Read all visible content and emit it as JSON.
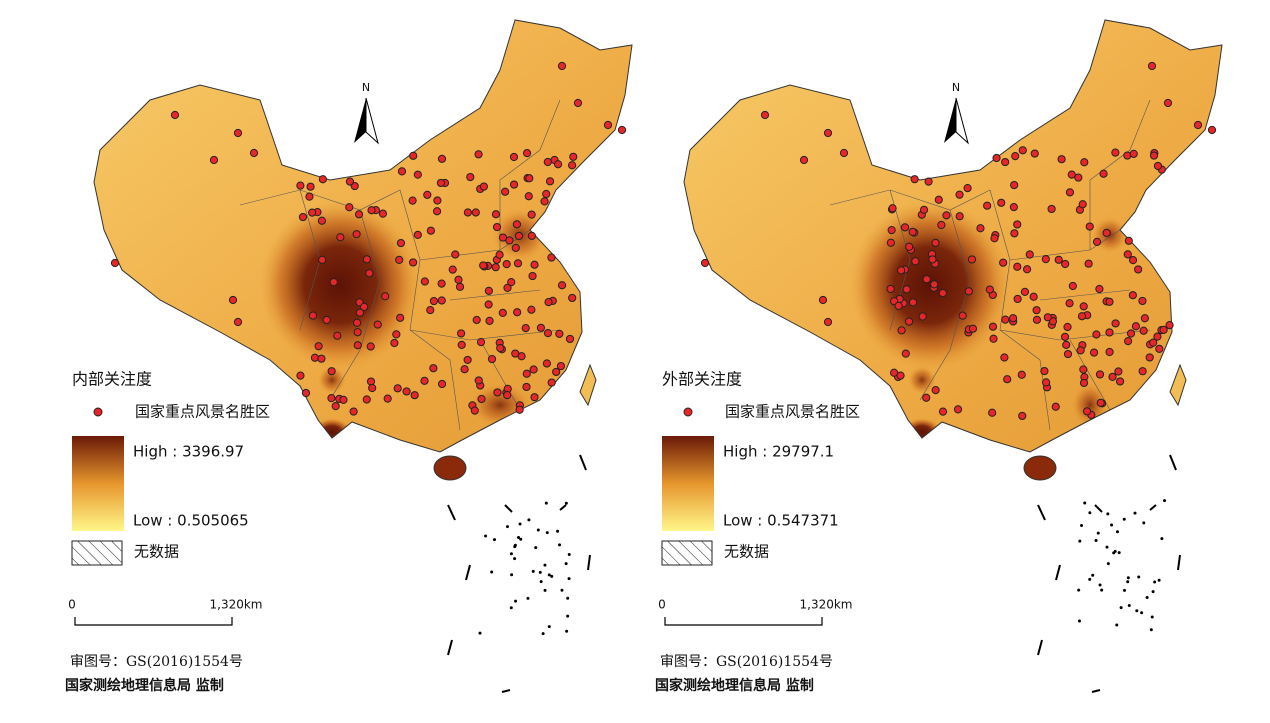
{
  "panels": [
    {
      "north": "N",
      "legend": {
        "title": "内部关注度",
        "point_label": "国家重点风景名胜区",
        "high": "High : 3396.97",
        "low": "Low : 0.505065",
        "no_data": "无数据"
      },
      "scale": {
        "start": "0",
        "end": "1,320km"
      },
      "approval": "审图号：GS(2016)1554号",
      "agency": "国家测绘地理信息局 监制"
    },
    {
      "north": "N",
      "legend": {
        "title": "外部关注度",
        "point_label": "国家重点风景名胜区",
        "high": "High : 29797.1",
        "low": "Low : 0.547371",
        "no_data": "无数据"
      },
      "scale": {
        "start": "0",
        "end": "1,320km"
      },
      "approval": "审图号：GS(2016)1554号",
      "agency": "国家测绘地理信息局 监制"
    }
  ]
}
